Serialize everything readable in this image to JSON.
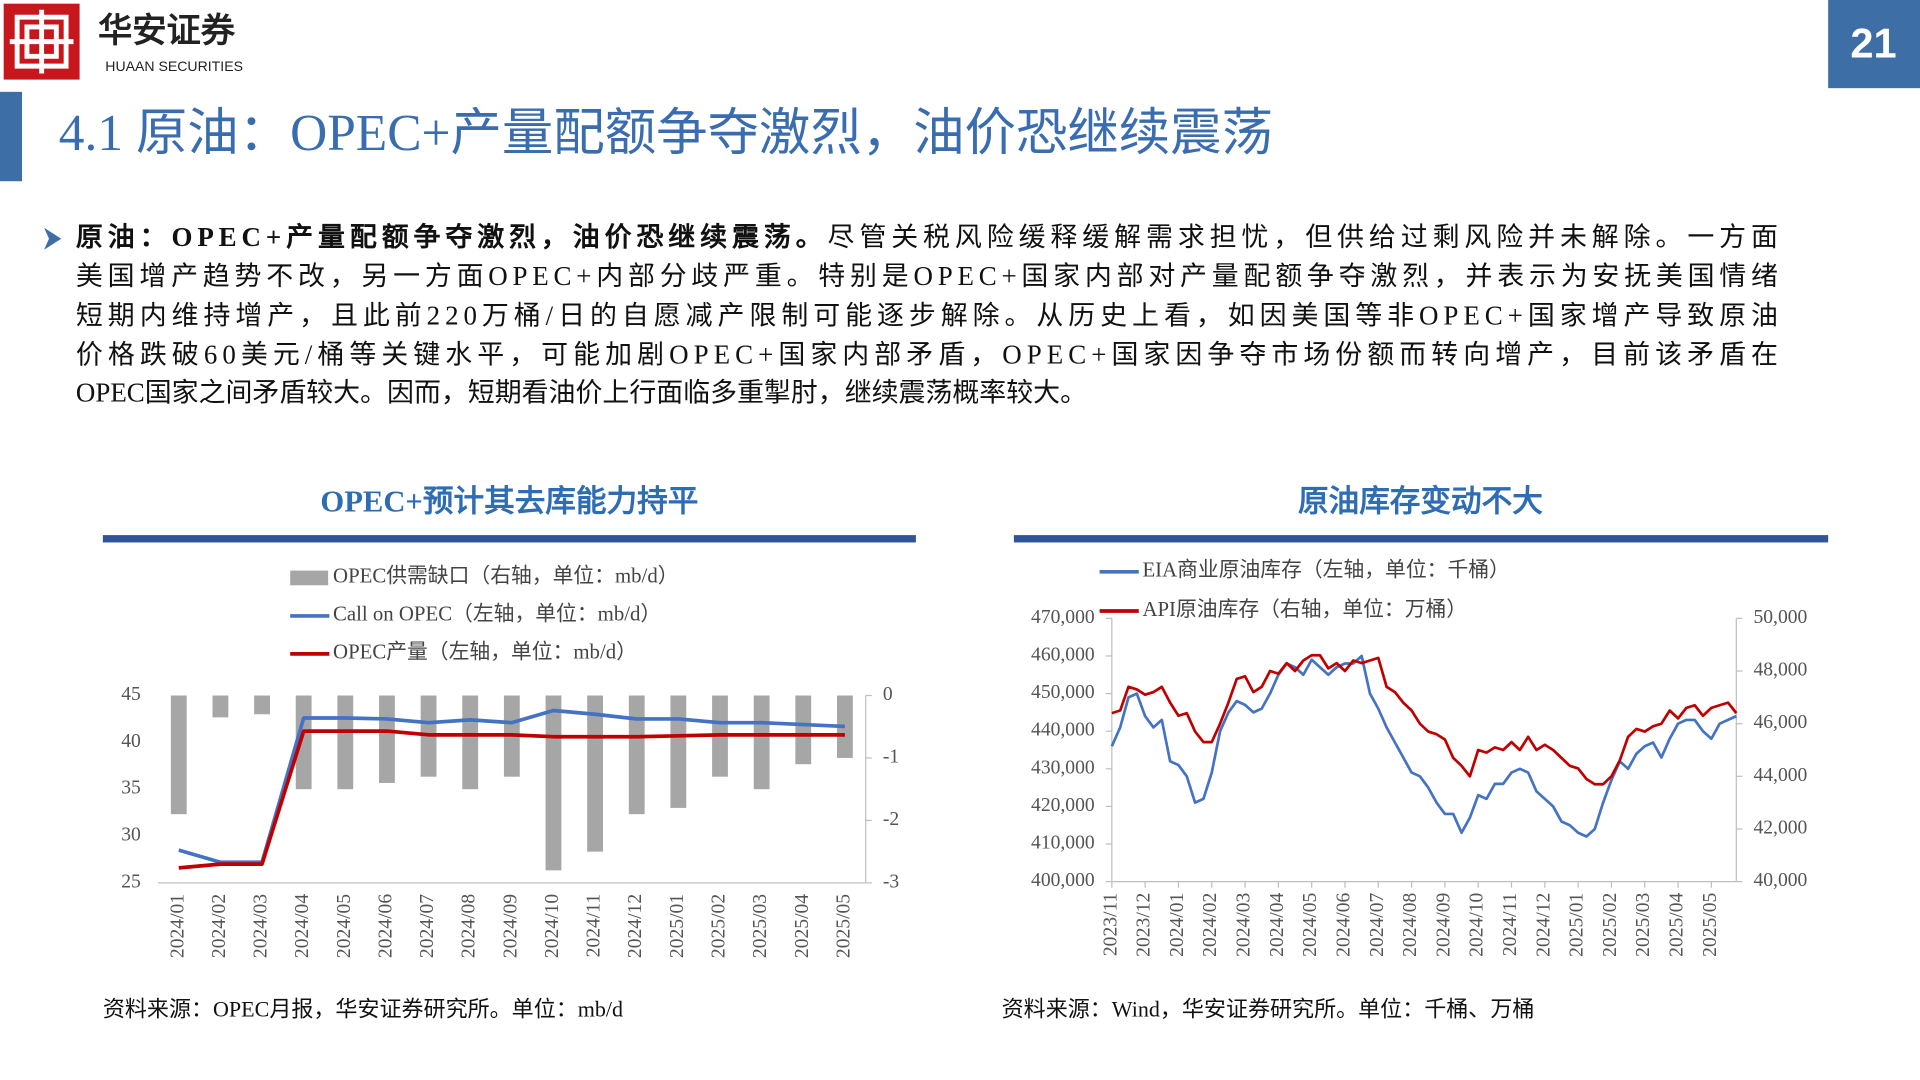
{
  "header": {
    "brand": "华安证券",
    "brand_en": "HUAAN SECURITIES",
    "page_number": "21"
  },
  "section_title": "4.1 原油：OPEC+产量配额争夺激烈，油价恐继续震荡",
  "body": {
    "lead": "原油：OPEC+产量配额争夺激烈，油价恐继续震荡。",
    "lines": [
      "尽管关税风险缓释缓解需求担忧，但供给过剩风险并未解除。一方面",
      "美国增产趋势不改，另一方面OPEC+内部分歧严重。特别是OPEC+国家内部对产量配额争夺激烈，并表示为安抚美国情绪",
      "短期内维持增产，且此前220万桶/日的自愿减产限制可能逐步解除。从历史上看，如因美国等非OPEC+国家增产导致原油",
      "价格跌破60美元/桶等关键水平，可能加剧OPEC+国家内部矛盾，OPEC+国家因争夺市场份额而转向增产，目前该矛盾在",
      "OPEC国家之间矛盾较大。因而，短期看油价上行面临多重掣肘，继续震荡概率较大。"
    ]
  },
  "chart_data": [
    {
      "type": "combo",
      "title": "OPEC+预计其去库能力持平",
      "source": "资料来源：OPEC月报，华安证券研究所。单位：mb/d",
      "categories": [
        "2024/01",
        "2024/02",
        "2024/03",
        "2024/04",
        "2024/05",
        "2024/06",
        "2024/07",
        "2024/08",
        "2024/09",
        "2024/10",
        "2024/11",
        "2024/12",
        "2025/01",
        "2025/02",
        "2025/03",
        "2025/04",
        "2025/05"
      ],
      "series": [
        {
          "name": "OPEC供需缺口（右轴，单位：mb/d）",
          "type": "bar",
          "axis": "y2",
          "color": "#a6a6a6",
          "values": [
            -1.9,
            -0.35,
            -0.3,
            -1.5,
            -1.5,
            -1.4,
            -1.3,
            -1.5,
            -1.3,
            -2.8,
            -2.5,
            -1.9,
            -1.8,
            -1.3,
            -1.5,
            -1.1,
            -1.0
          ]
        },
        {
          "name": "Call on OPEC（左轴，单位：mb/d）",
          "type": "line",
          "color": "#4472c4",
          "values": [
            28.5,
            27.2,
            27.2,
            42.6,
            42.6,
            42.5,
            42.1,
            42.4,
            42.1,
            43.4,
            43.0,
            42.5,
            42.5,
            42.1,
            42.1,
            41.9,
            41.7
          ]
        },
        {
          "name": "OPEC产量（左轴，单位：mb/d）",
          "type": "line",
          "color": "#c00000",
          "values": [
            26.6,
            27.0,
            27.0,
            41.2,
            41.2,
            41.2,
            40.8,
            40.8,
            40.8,
            40.6,
            40.6,
            40.6,
            40.7,
            40.8,
            40.8,
            40.8,
            40.8
          ]
        }
      ],
      "ylim": [
        25,
        45
      ],
      "yticks": [
        25,
        30,
        35,
        40,
        45
      ],
      "y2lim": [
        -3,
        0
      ],
      "y2ticks": [
        0,
        -1,
        -2,
        -3
      ],
      "grid": false
    },
    {
      "type": "line",
      "title": "原油库存变动不大",
      "source": "资料来源：Wind，华安证券研究所。单位：千桶、万桶",
      "categories": [
        "2023/11",
        null,
        null,
        null,
        "2023/12",
        null,
        null,
        null,
        "2024/01",
        null,
        null,
        null,
        "2024/02",
        null,
        null,
        null,
        "2024/03",
        null,
        null,
        null,
        "2024/04",
        null,
        null,
        null,
        "2024/05",
        null,
        null,
        null,
        "2024/06",
        null,
        null,
        null,
        "2024/07",
        null,
        null,
        null,
        "2024/08",
        null,
        null,
        null,
        "2024/09",
        null,
        null,
        null,
        "2024/10",
        null,
        null,
        null,
        "2024/11",
        null,
        null,
        null,
        "2024/12",
        null,
        null,
        null,
        "2025/01",
        null,
        null,
        null,
        "2025/02",
        null,
        null,
        null,
        "2025/03",
        null,
        null,
        null,
        "2025/04",
        null,
        null,
        null,
        "2025/05",
        null,
        null,
        null
      ],
      "series": [
        {
          "name": "EIA商业原油库存（左轴，单位：千桶）",
          "color": "#4472c4",
          "values": [
            436000,
            441000,
            449000,
            450000,
            444000,
            441000,
            443000,
            432000,
            431000,
            428000,
            421000,
            422000,
            429000,
            440000,
            445000,
            448000,
            447000,
            445000,
            446000,
            450000,
            455000,
            458000,
            457000,
            455000,
            459000,
            457000,
            455000,
            457000,
            458000,
            458000,
            460000,
            450000,
            446000,
            441000,
            437000,
            433000,
            429000,
            428000,
            425000,
            421000,
            418000,
            418000,
            413000,
            417000,
            423000,
            422000,
            426000,
            426000,
            429000,
            430000,
            429000,
            424000,
            422000,
            420000,
            416000,
            415000,
            413000,
            412000,
            414000,
            421000,
            427000,
            432000,
            430000,
            434000,
            436000,
            437000,
            433000,
            438000,
            442000,
            443000,
            443000,
            440000,
            438000,
            442000,
            443000,
            444000
          ]
        },
        {
          "name": "API原油库存（右轴，单位：万桶）",
          "color": "#c00000",
          "axis": "y2",
          "values": [
            46400,
            46500,
            47400,
            47300,
            47100,
            47200,
            47400,
            46800,
            46300,
            46400,
            45700,
            45300,
            45300,
            46000,
            46800,
            47700,
            47800,
            47200,
            47400,
            48000,
            47900,
            48300,
            48000,
            48400,
            48600,
            48600,
            48100,
            48300,
            48000,
            48400,
            48300,
            48400,
            48500,
            47400,
            47200,
            46800,
            46500,
            46000,
            45700,
            45600,
            45400,
            44700,
            44400,
            44000,
            45000,
            44900,
            45100,
            45000,
            45300,
            45000,
            45500,
            45000,
            45200,
            45000,
            44700,
            44400,
            44300,
            43900,
            43700,
            43700,
            44000,
            44600,
            45500,
            45800,
            45700,
            45900,
            46000,
            46500,
            46200,
            46600,
            46700,
            46300,
            46600,
            46700,
            46800,
            46400
          ]
        }
      ],
      "ylim": [
        400000,
        470000
      ],
      "yticks": [
        {
          "value": 400000,
          "label": "400,000"
        },
        {
          "value": 410000,
          "label": "410,000"
        },
        {
          "value": 420000,
          "label": "420,000"
        },
        {
          "value": 430000,
          "label": "430,000"
        },
        {
          "value": 440000,
          "label": "440,000"
        },
        {
          "value": 450000,
          "label": "450,000"
        },
        {
          "value": 460000,
          "label": "460,000"
        },
        {
          "value": 470000,
          "label": "470,000"
        }
      ],
      "y2lim": [
        40000,
        50000
      ],
      "y2ticks": [
        {
          "value": 40000,
          "label": "40,000"
        },
        {
          "value": 42000,
          "label": "42,000"
        },
        {
          "value": 44000,
          "label": "44,000"
        },
        {
          "value": 46000,
          "label": "46,000"
        },
        {
          "value": 48000,
          "label": "48,000"
        },
        {
          "value": 50000,
          "label": "50,000"
        }
      ],
      "grid": false
    }
  ]
}
